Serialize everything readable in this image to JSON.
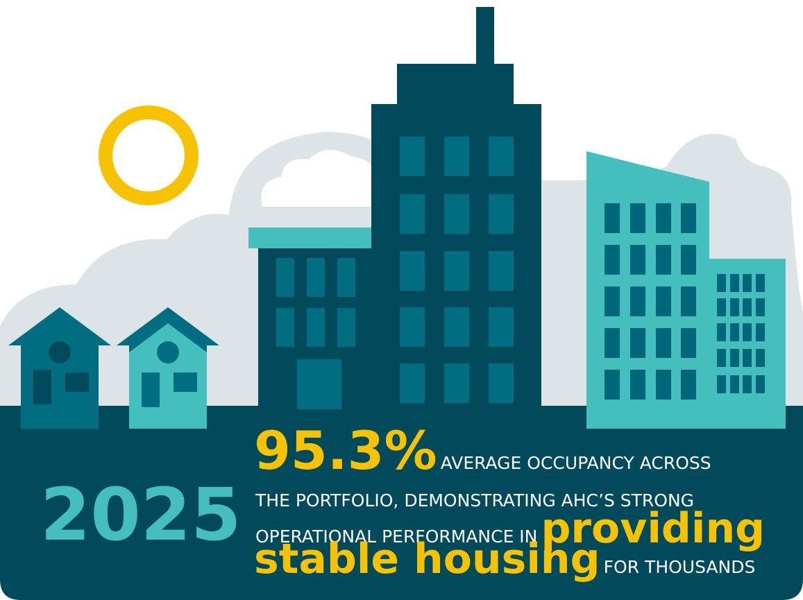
{
  "year": "2025",
  "headline": {
    "stat": "95.3%",
    "line1": "AVERAGE OCCUPANCY ACROSS",
    "line2": "THE PORTFOLIO, DEMONSTRATING AHC’S STRONG",
    "line3": "OPERATIONAL PERFORMANCE IN",
    "highlight1": "providing",
    "highlight2": "stable housing",
    "line4": "FOR THOUSANDS"
  }
}
